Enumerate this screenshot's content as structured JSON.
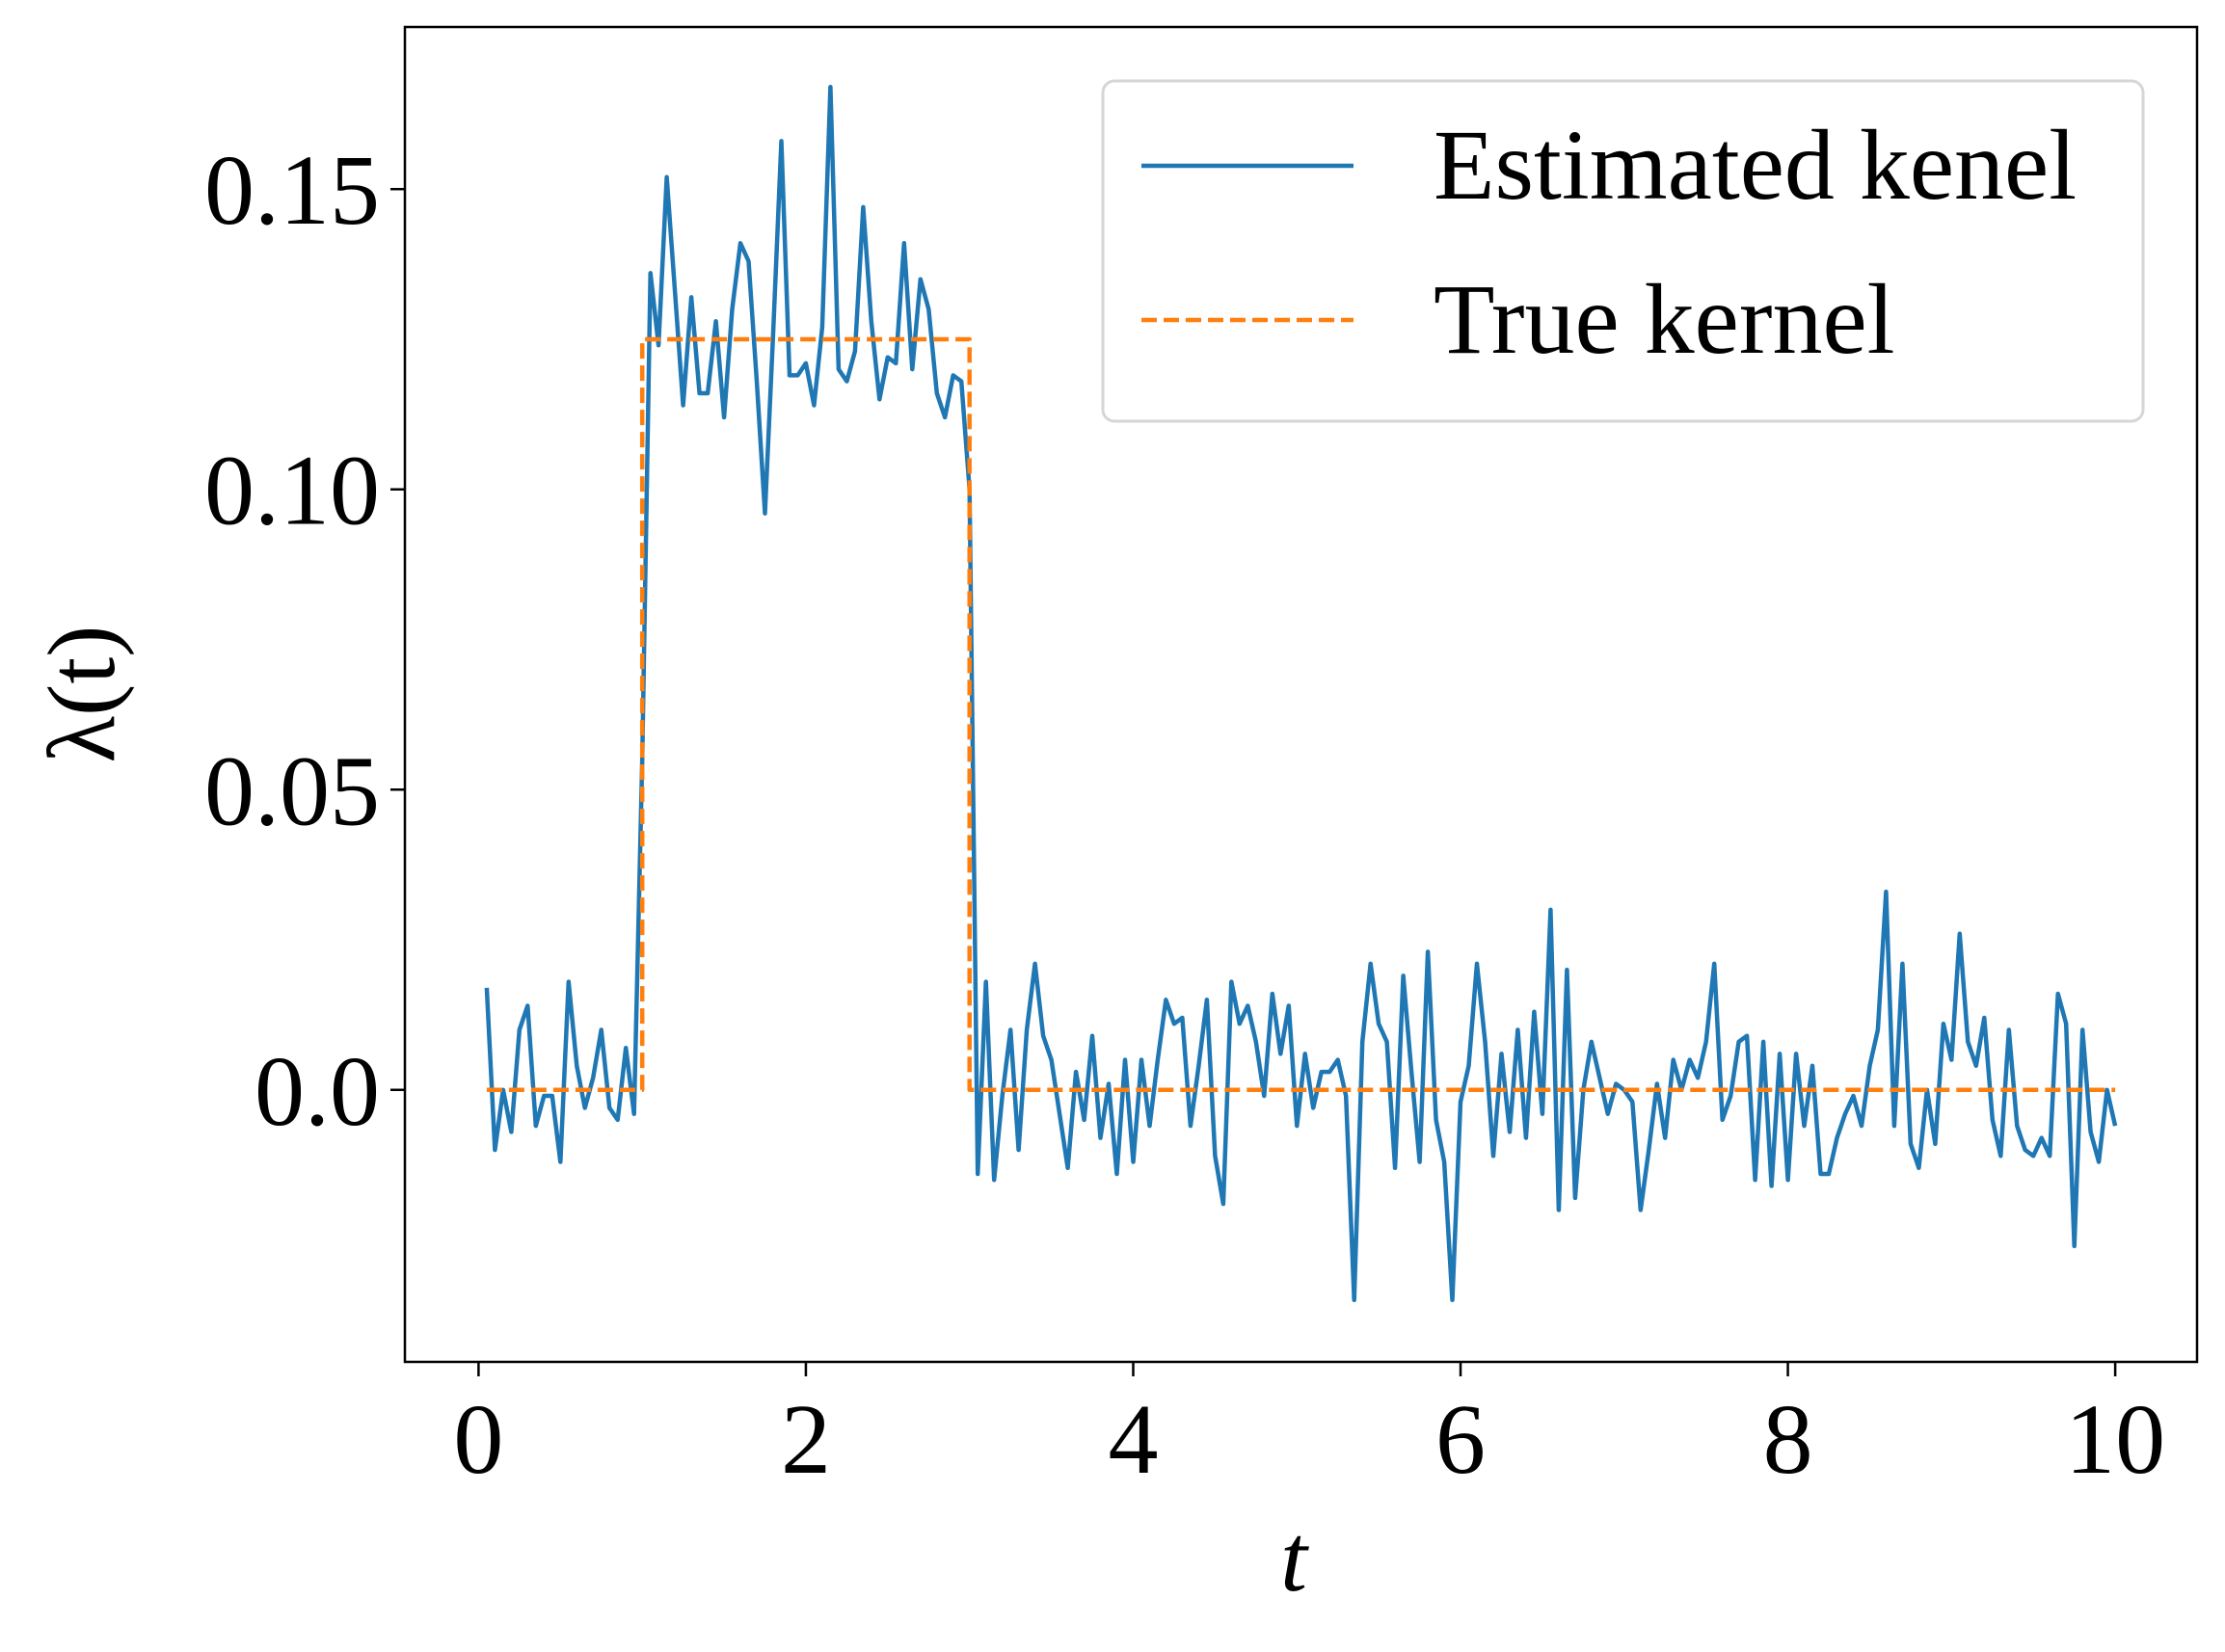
{
  "chart_data": {
    "type": "line",
    "xlabel": "t",
    "ylabel": "λ(t)",
    "xlim": [
      -0.45,
      10.5
    ],
    "ylim": [
      -0.0453,
      0.177
    ],
    "xticks": [
      0,
      2,
      4,
      6,
      8,
      10
    ],
    "yticks": [
      {
        "value": 0.0,
        "label": "0.0"
      },
      0.05,
      {
        "value": 0.1,
        "label": "0.10"
      },
      0.15
    ],
    "legend": "upper right",
    "series": [
      {
        "name": "Estimated kenel",
        "color": "#1f77b4",
        "style": "solid",
        "x": [
          0.05,
          0.1,
          0.15,
          0.2,
          0.25,
          0.3,
          0.35,
          0.4,
          0.45,
          0.5,
          0.55,
          0.6,
          0.65,
          0.7,
          0.75,
          0.8,
          0.85,
          0.9,
          0.95,
          1.0,
          1.05,
          1.1,
          1.15,
          1.2,
          1.25,
          1.3,
          1.35,
          1.4,
          1.45,
          1.5,
          1.55,
          1.6,
          1.65,
          1.7,
          1.75,
          1.8,
          1.85,
          1.9,
          1.95,
          2.0,
          2.05,
          2.1,
          2.15,
          2.2,
          2.25,
          2.3,
          2.35,
          2.4,
          2.45,
          2.5,
          2.55,
          2.6,
          2.65,
          2.7,
          2.75,
          2.8,
          2.85,
          2.9,
          2.95,
          3.0,
          3.05,
          3.1,
          3.15,
          3.2,
          3.25,
          3.3,
          3.35,
          3.4,
          3.45,
          3.5,
          3.55,
          3.6,
          3.65,
          3.7,
          3.75,
          3.8,
          3.85,
          3.9,
          3.95,
          4.0,
          4.05,
          4.1,
          4.15,
          4.2,
          4.25,
          4.3,
          4.35,
          4.4,
          4.45,
          4.5,
          4.55,
          4.6,
          4.65,
          4.7,
          4.75,
          4.8,
          4.85,
          4.9,
          4.95,
          5.0,
          5.05,
          5.1,
          5.15,
          5.2,
          5.25,
          5.3,
          5.35,
          5.4,
          5.45,
          5.5,
          5.55,
          5.6,
          5.65,
          5.7,
          5.75,
          5.8,
          5.85,
          5.9,
          5.95,
          6.0,
          6.05,
          6.1,
          6.15,
          6.2,
          6.25,
          6.3,
          6.35,
          6.4,
          6.45,
          6.5,
          6.55,
          6.6,
          6.65,
          6.7,
          6.75,
          6.8,
          6.85,
          6.9,
          6.95,
          7.0,
          7.05,
          7.1,
          7.15,
          7.2,
          7.25,
          7.3,
          7.35,
          7.4,
          7.45,
          7.5,
          7.55,
          7.6,
          7.65,
          7.7,
          7.75,
          7.8,
          7.85,
          7.9,
          7.95,
          8.0,
          8.05,
          8.1,
          8.15,
          8.2,
          8.25,
          8.3,
          8.35,
          8.4,
          8.45,
          8.5,
          8.55,
          8.6,
          8.65,
          8.7,
          8.75,
          8.8,
          8.85,
          8.9,
          8.95,
          9.0,
          9.05,
          9.1,
          9.15,
          9.2,
          9.25,
          9.3,
          9.35,
          9.4,
          9.45,
          9.5,
          9.55,
          9.6,
          9.65,
          9.7,
          9.75,
          9.8,
          9.85,
          9.9,
          9.95,
          10.0
        ],
        "values": [
          0.017,
          -0.01,
          0.0,
          -0.007,
          0.01,
          0.014,
          -0.006,
          -0.001,
          -0.001,
          -0.012,
          0.018,
          0.004,
          -0.003,
          0.002,
          0.01,
          -0.003,
          -0.005,
          0.007,
          -0.004,
          0.055,
          0.136,
          0.124,
          0.152,
          0.133,
          0.114,
          0.132,
          0.116,
          0.116,
          0.128,
          0.112,
          0.13,
          0.141,
          0.138,
          0.118,
          0.096,
          0.126,
          0.158,
          0.119,
          0.119,
          0.121,
          0.114,
          0.127,
          0.167,
          0.12,
          0.118,
          0.123,
          0.147,
          0.128,
          0.115,
          0.122,
          0.121,
          0.141,
          0.12,
          0.135,
          0.13,
          0.116,
          0.112,
          0.119,
          0.118,
          0.1,
          -0.014,
          0.018,
          -0.015,
          -0.001,
          0.01,
          -0.01,
          0.01,
          0.021,
          0.009,
          0.005,
          -0.004,
          -0.013,
          0.003,
          -0.005,
          0.009,
          -0.008,
          0.001,
          -0.014,
          0.005,
          -0.012,
          0.005,
          -0.006,
          0.005,
          0.015,
          0.011,
          0.012,
          -0.006,
          0.004,
          0.015,
          -0.011,
          -0.019,
          0.018,
          0.011,
          0.014,
          0.008,
          -0.001,
          0.016,
          0.006,
          0.014,
          -0.006,
          0.006,
          -0.003,
          0.003,
          0.003,
          0.005,
          -0.001,
          -0.035,
          0.008,
          0.021,
          0.011,
          0.008,
          -0.013,
          0.019,
          0.003,
          -0.012,
          0.023,
          -0.005,
          -0.012,
          -0.035,
          -0.002,
          0.004,
          0.021,
          0.008,
          -0.011,
          0.006,
          -0.007,
          0.01,
          -0.008,
          0.013,
          -0.004,
          0.03,
          -0.02,
          0.02,
          -0.018,
          0.0,
          0.008,
          0.002,
          -0.004,
          0.001,
          0.0,
          -0.002,
          -0.02,
          -0.01,
          0.001,
          -0.008,
          0.005,
          0.0,
          0.005,
          0.002,
          0.008,
          0.021,
          -0.005,
          -0.001,
          0.008,
          0.009,
          -0.015,
          0.008,
          -0.016,
          0.006,
          -0.015,
          0.006,
          -0.006,
          0.004,
          -0.014,
          -0.014,
          -0.008,
          -0.004,
          -0.001,
          -0.006,
          0.004,
          0.01,
          0.033,
          -0.006,
          0.021,
          -0.009,
          -0.013,
          0.0,
          -0.009,
          0.011,
          0.005,
          0.026,
          0.008,
          0.004,
          0.012,
          -0.005,
          -0.011,
          0.01,
          -0.006,
          -0.01,
          -0.011,
          -0.008,
          -0.011,
          0.016,
          0.011,
          -0.026,
          0.01,
          -0.007,
          -0.012,
          0.0,
          -0.006
        ]
      },
      {
        "name": "True kernel",
        "color": "#ff7f0e",
        "style": "dashed",
        "x": [
          0.05,
          1.0,
          1.0,
          3.0,
          3.0,
          10.0
        ],
        "values": [
          0,
          0,
          0.125,
          0.125,
          0,
          0
        ]
      }
    ]
  }
}
